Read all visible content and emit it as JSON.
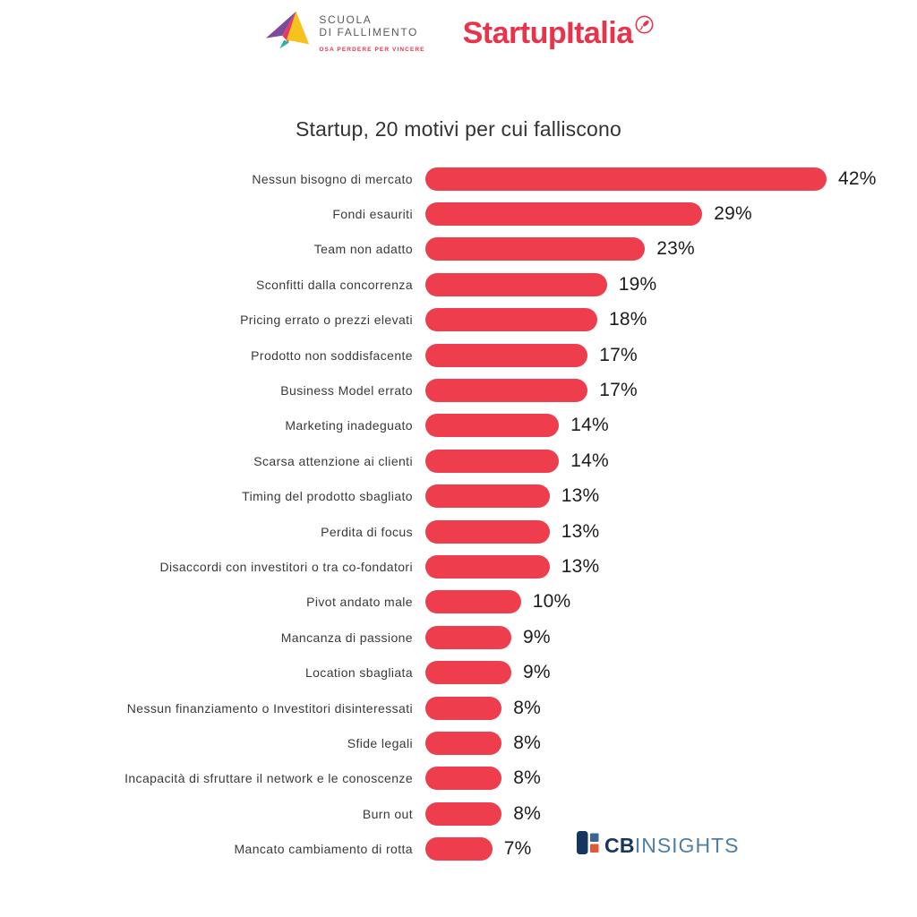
{
  "header": {
    "scuola_logo": {
      "line1": "SCUOLA",
      "line2": "DI FALLIMENTO",
      "tagline": "OSA PERDERE PER VINCERE"
    },
    "startupitalia": {
      "wordmark": "StartupItalia"
    }
  },
  "title": "Startup, 20 motivi per cui falliscono",
  "chart_data": {
    "type": "bar",
    "orientation": "horizontal",
    "title": "Startup, 20 motivi per cui falliscono",
    "unit": "%",
    "xlim": [
      0,
      42
    ],
    "grid": false,
    "legend": "none",
    "bar_color": "#ee3e4d",
    "categories": [
      "Nessun bisogno di mercato",
      "Fondi esauriti",
      "Team non adatto",
      "Sconfitti dalla concorrenza",
      "Pricing errato o prezzi elevati",
      "Prodotto non soddisfacente",
      "Business Model errato",
      "Marketing inadeguato",
      "Scarsa attenzione ai clienti",
      "Timing del prodotto sbagliato",
      "Perdita di focus",
      "Disaccordi con investitori o tra co-fondatori",
      "Pivot andato male",
      "Mancanza di passione",
      "Location sbagliata",
      "Nessun finanziamento o Investitori disinteressati",
      "Sfide legali",
      "Incapacità di sfruttare il network e le conoscenze",
      "Burn out",
      "Mancato cambiamento di rotta"
    ],
    "values": [
      42,
      29,
      23,
      19,
      18,
      17,
      17,
      14,
      14,
      13,
      13,
      13,
      10,
      9,
      9,
      8,
      8,
      8,
      8,
      7
    ],
    "value_labels": [
      "42%",
      "29%",
      "23%",
      "19%",
      "18%",
      "17%",
      "17%",
      "14%",
      "14%",
      "13%",
      "13%",
      "13%",
      "10%",
      "9%",
      "9%",
      "8%",
      "8%",
      "8%",
      "8%",
      "7%"
    ]
  },
  "footer": {
    "cbinsights": {
      "cb": "CB",
      "insights": "INSIGHTS"
    }
  },
  "colors": {
    "bar_red": "#ee3e4d",
    "startupitalia_red": "#e8334a",
    "scuola_gray": "#5a5a5c",
    "cb_navy": "#17365f",
    "cb_blue": "#4e7fa6",
    "cb_orange": "#e2593a",
    "plane_purple": "#7c4a9b",
    "plane_pink": "#e83a5f",
    "plane_yellow": "#f6c21e",
    "plane_teal": "#29b2a2"
  }
}
